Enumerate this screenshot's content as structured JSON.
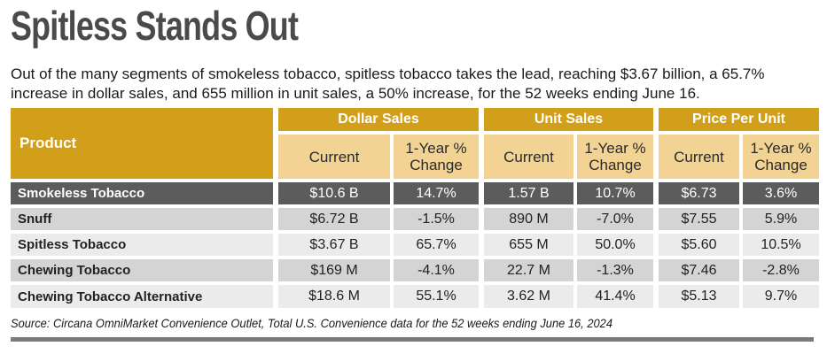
{
  "title": "Spitless Stands Out",
  "subtitle": "Out of the many segments of smokeless tobacco, spitless tobacco takes the lead, reaching $3.67 billion, a 65.7% increase in dollar sales, and 655 million in unit sales, a 50% increase, for the 52 weeks ending June 16.",
  "source": "Source: Circana OmniMarket Convenience Outlet, Total U.S. Convenience data for the 52 weeks ending June 16, 2024",
  "colors": {
    "gold": "#d19f1a",
    "tan": "#f2d394",
    "dark_row": "#5c5c5c",
    "stripe_a": "#d4d4d4",
    "stripe_b": "#ebebeb"
  },
  "chart_data": {
    "type": "table",
    "title": "Spitless Stands Out",
    "product_header": "Product",
    "groups": [
      "Dollar Sales",
      "Unit Sales",
      "Price Per Unit"
    ],
    "subheaders": {
      "current": "Current",
      "change": "1-Year % Change"
    },
    "rows": [
      {
        "product": "Smokeless Tobacco",
        "values": [
          "$10.6 B",
          "14.7%",
          "1.57 B",
          "10.7%",
          "$6.73",
          "3.6%"
        ]
      },
      {
        "product": "Snuff",
        "values": [
          "$6.72 B",
          "-1.5%",
          "890 M",
          "-7.0%",
          "$7.55",
          "5.9%"
        ]
      },
      {
        "product": "Spitless Tobacco",
        "values": [
          "$3.67 B",
          "65.7%",
          "655 M",
          "50.0%",
          "$5.60",
          "10.5%"
        ]
      },
      {
        "product": "Chewing Tobacco",
        "values": [
          "$169 M",
          "-4.1%",
          "22.7 M",
          "-1.3%",
          "$7.46",
          "-2.8%"
        ]
      },
      {
        "product": "Chewing Tobacco Alternative",
        "values": [
          "$18.6 M",
          "55.1%",
          "3.62 M",
          "41.4%",
          "$5.13",
          "9.7%"
        ]
      }
    ]
  }
}
